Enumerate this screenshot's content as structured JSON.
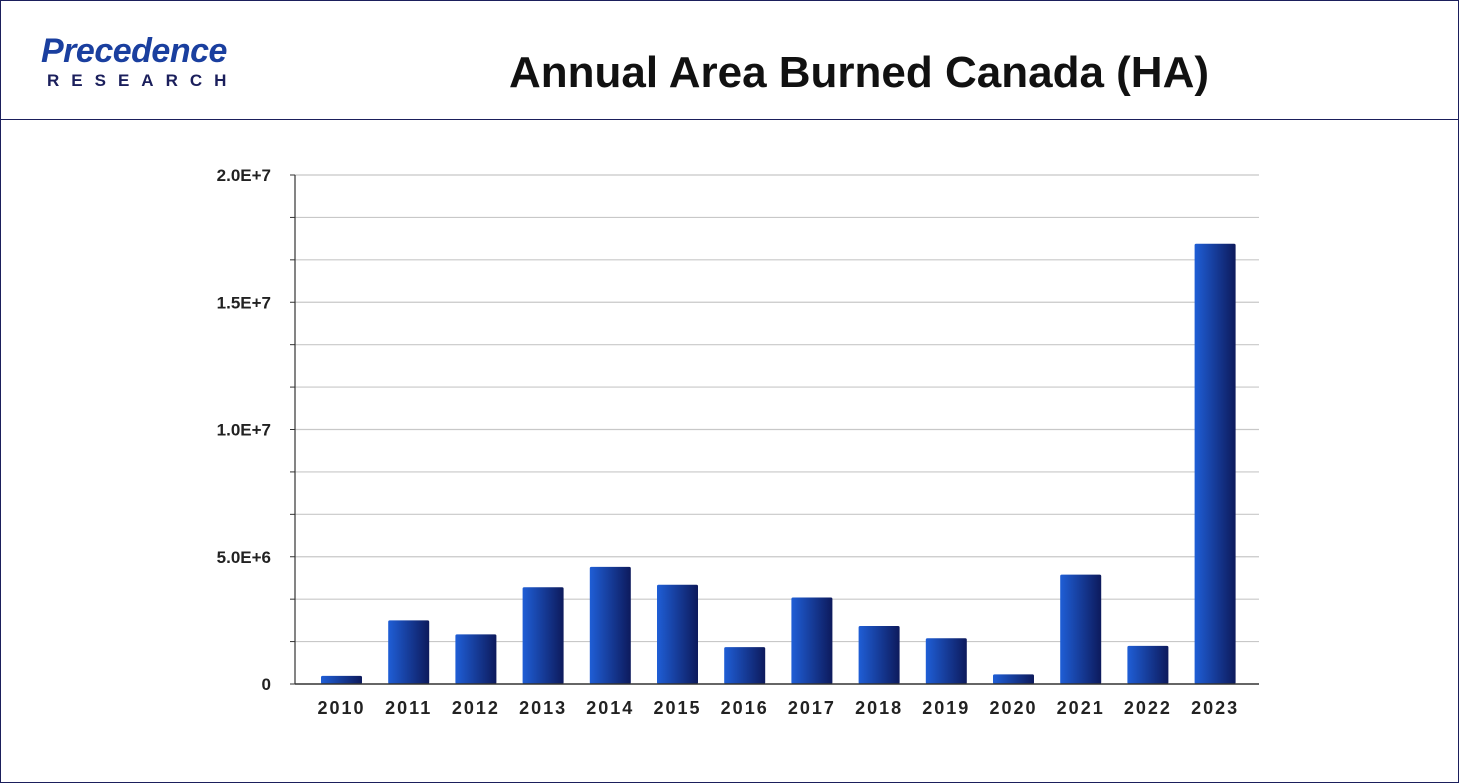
{
  "header": {
    "logo_top": "Precedence",
    "logo_bottom": "RESEARCH",
    "title": "Annual Area Burned Canada (HA)"
  },
  "colors": {
    "bar_light": "#1f5ed6",
    "bar_dark": "#0d1a5c",
    "frame": "#1b1f5c",
    "grid": "#c8c8c8"
  },
  "chart_data": {
    "type": "bar",
    "title": "Annual Area Burned Canada (HA)",
    "xlabel": "",
    "ylabel": "",
    "categories": [
      "2010",
      "2011",
      "2012",
      "2013",
      "2014",
      "2015",
      "2016",
      "2017",
      "2018",
      "2019",
      "2020",
      "2021",
      "2022",
      "2023"
    ],
    "values": [
      320000,
      2500000,
      1950000,
      3800000,
      4600000,
      3900000,
      1450000,
      3400000,
      2280000,
      1800000,
      380000,
      4300000,
      1500000,
      17300000
    ],
    "ylim": [
      0,
      20000000
    ],
    "yticks": [
      0,
      5000000,
      10000000,
      15000000,
      20000000
    ],
    "ytick_labels": [
      "0",
      "5.0E+6",
      "1.0E+7",
      "1.5E+7",
      "2.0E+7"
    ],
    "grid": true,
    "legend": "none"
  }
}
